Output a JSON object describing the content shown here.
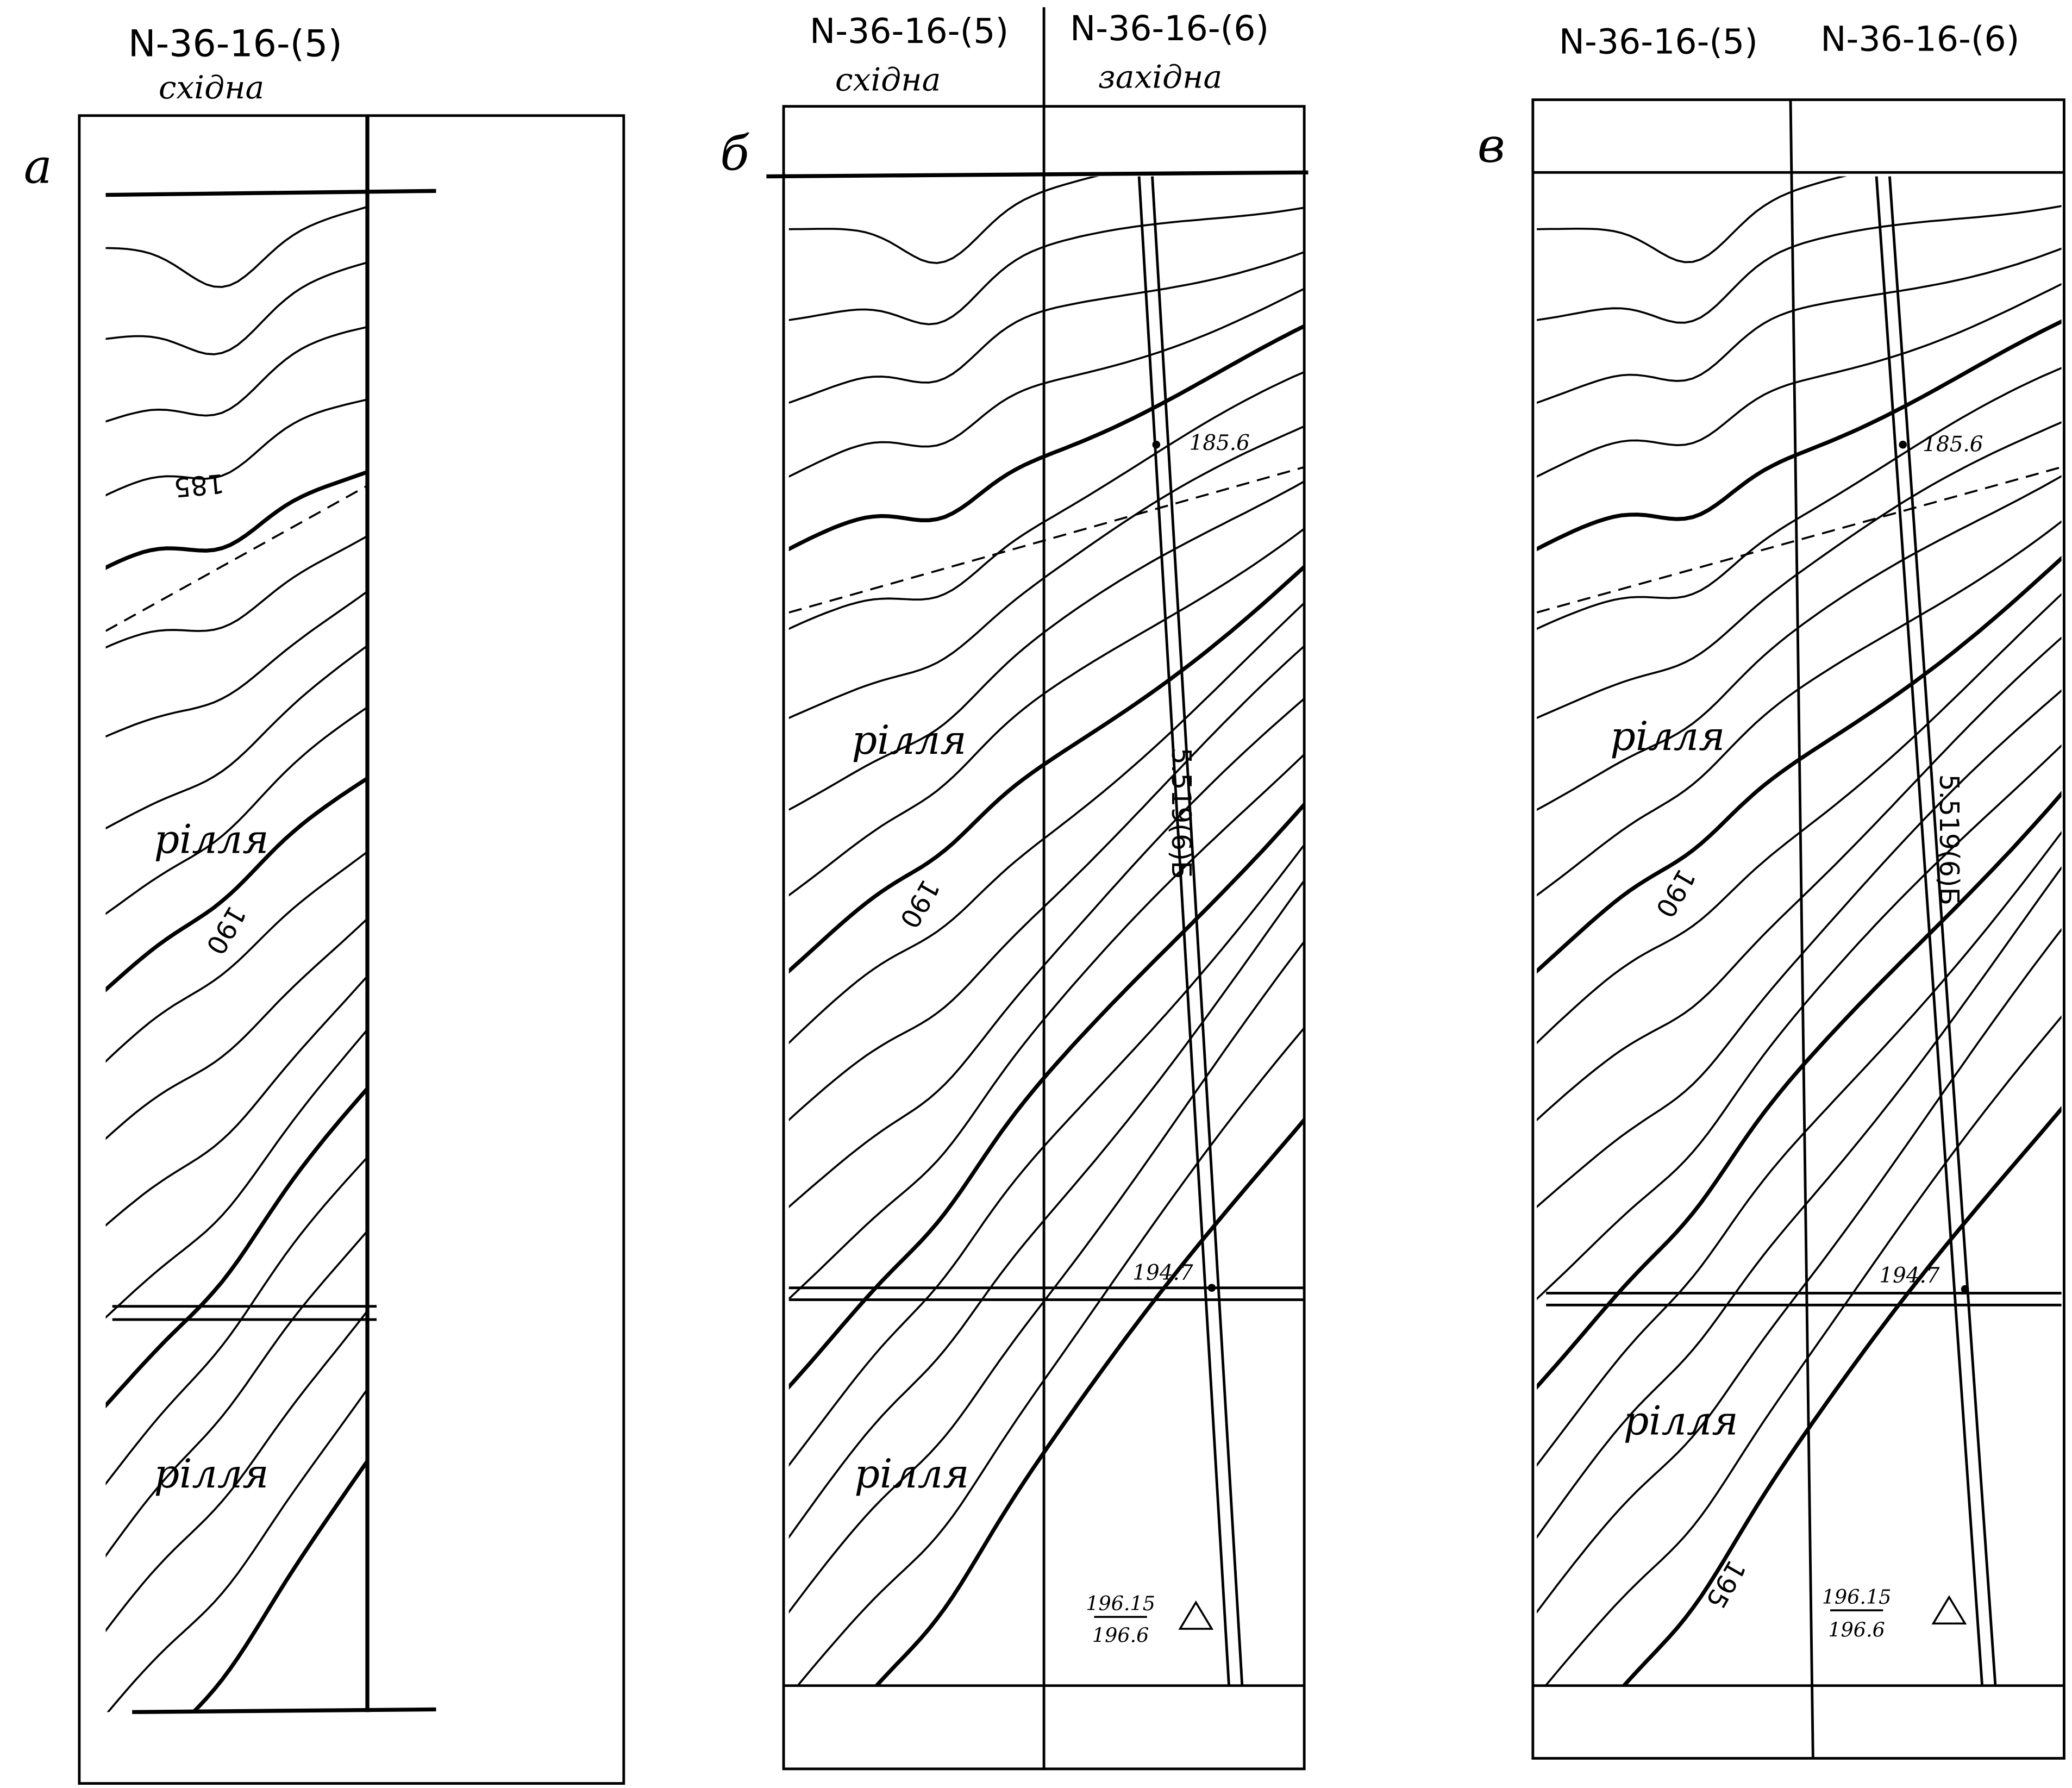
{
  "panels": [
    {
      "label": "а",
      "sheets": [
        {
          "name": "N-36-16-(5)",
          "side": "східна"
        }
      ],
      "texts": [
        "185",
        "190",
        "рілля",
        "рілля"
      ]
    },
    {
      "label": "б",
      "sheets": [
        {
          "name": "N-36-16-(5)",
          "side": "східна"
        },
        {
          "name": "N-36-16-(6)",
          "side": "західна"
        }
      ],
      "texts": [
        "185.6",
        "5.519(6)Б",
        "190",
        "рілля",
        "194.7",
        "рілля",
        "196.15",
        "196.6"
      ]
    },
    {
      "label": "в",
      "sheets": [
        {
          "name": "N-36-16-(5)"
        },
        {
          "name": "N-36-16-(6)"
        }
      ],
      "texts": [
        "185.6",
        "5.519(6)Б",
        "рілля",
        "190",
        "194.7",
        "рілля",
        "195",
        "196.15",
        "196.6"
      ]
    }
  ]
}
